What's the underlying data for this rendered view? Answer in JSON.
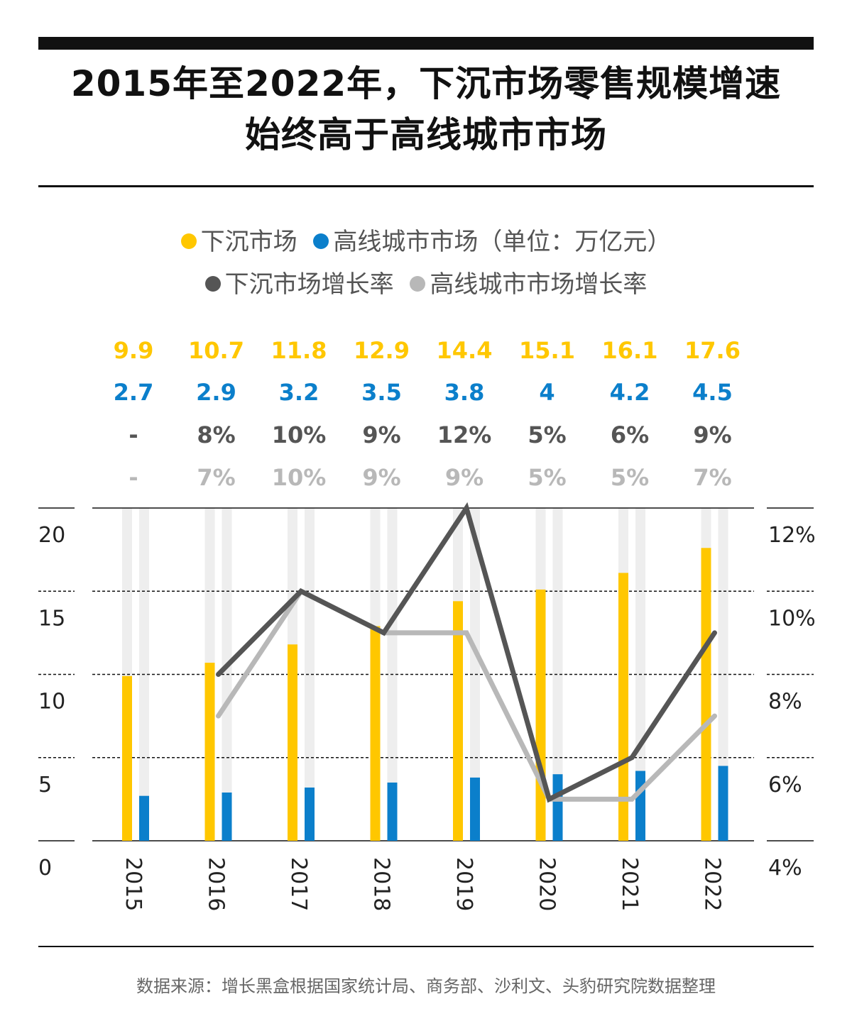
{
  "title": {
    "line1": "2015年至2022年，下沉市场零售规模增速",
    "line2": "始终高于高线城市市场"
  },
  "legend": {
    "row1": [
      {
        "label": "下沉市场",
        "color": "#FFC700"
      },
      {
        "label": "高线城市市场（单位：万亿元）",
        "color": "#0B7FCB"
      }
    ],
    "row2": [
      {
        "label": "下沉市场增长率",
        "color": "#555555"
      },
      {
        "label": "高线城市市场增长率",
        "color": "#B8B8B8"
      }
    ]
  },
  "source": "数据来源：增长黑盒根据国家统计局、商务部、沙利文、头豹研究院数据整理",
  "chart_data": {
    "type": "bar",
    "categories": [
      "2015",
      "2016",
      "2017",
      "2018",
      "2019",
      "2020",
      "2021",
      "2022"
    ],
    "series": [
      {
        "name": "下沉市场",
        "kind": "bar",
        "axis": "left",
        "color": "#FFC700",
        "values": [
          9.9,
          10.7,
          11.8,
          12.9,
          14.4,
          15.1,
          16.1,
          17.6
        ]
      },
      {
        "name": "高线城市市场",
        "kind": "bar",
        "axis": "left",
        "color": "#0B7FCB",
        "values": [
          2.7,
          2.9,
          3.2,
          3.5,
          3.8,
          4,
          4.2,
          4.5
        ]
      },
      {
        "name": "下沉市场增长率",
        "kind": "line",
        "axis": "right",
        "color": "#555555",
        "values": [
          null,
          8,
          10,
          9,
          12,
          5,
          6,
          9
        ]
      },
      {
        "name": "高线城市市场增长率",
        "kind": "line",
        "axis": "right",
        "color": "#B8B8B8",
        "values": [
          null,
          7,
          10,
          9,
          9,
          5,
          5,
          7
        ]
      }
    ],
    "label_rows": [
      {
        "color": "#FFC700",
        "labels": [
          "9.9",
          "10.7",
          "11.8",
          "12.9",
          "14.4",
          "15.1",
          "16.1",
          "17.6"
        ]
      },
      {
        "color": "#0B7FCB",
        "labels": [
          "2.7",
          "2.9",
          "3.2",
          "3.5",
          "3.8",
          "4",
          "4.2",
          "4.5"
        ]
      },
      {
        "color": "#555555",
        "labels": [
          "-",
          "8%",
          "10%",
          "9%",
          "12%",
          "5%",
          "6%",
          "9%"
        ]
      },
      {
        "color": "#B8B8B8",
        "labels": [
          "-",
          "7%",
          "10%",
          "9%",
          "9%",
          "5%",
          "5%",
          "7%"
        ]
      }
    ],
    "left_axis": {
      "ticks": [
        "0",
        "5",
        "10",
        "15",
        "20"
      ],
      "ylim": [
        0,
        20
      ]
    },
    "right_axis": {
      "ticks": [
        "4%",
        "6%",
        "8%",
        "10%",
        "12%"
      ],
      "ylim": [
        4,
        12
      ]
    },
    "grid": true
  }
}
